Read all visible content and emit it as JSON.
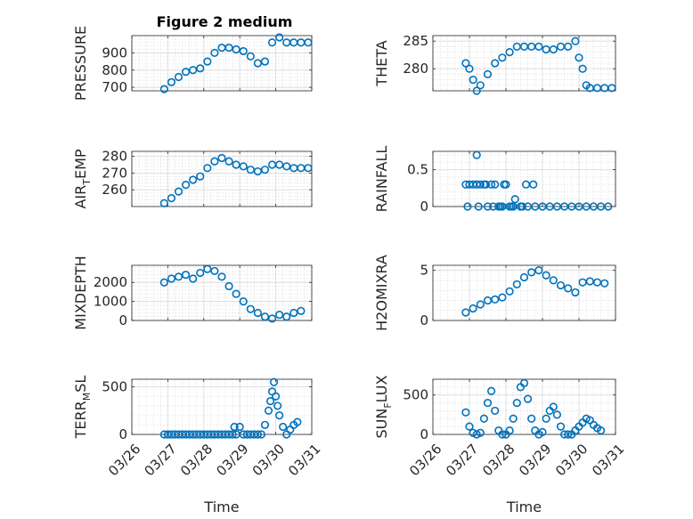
{
  "figure": {
    "title": "Figure 2 medium"
  },
  "chart_data": [
    {
      "type": "scatter",
      "title": "Figure 2 medium",
      "ylabel": "PRESSURE",
      "ylabel_sub": "",
      "xlabel": "",
      "xlim": [
        0,
        5
      ],
      "ylim": [
        680,
        1000
      ],
      "yticks": [
        700,
        800,
        900
      ],
      "grid": true,
      "series": [
        {
          "marker": "circle",
          "x": [
            0.9,
            1.1,
            1.3,
            1.5,
            1.7,
            1.9,
            2.1,
            2.3,
            2.5,
            2.7,
            2.9,
            3.1,
            3.3,
            3.5,
            3.7,
            3.9,
            4.1,
            4.3,
            4.5,
            4.7,
            4.9
          ],
          "y": [
            690,
            730,
            760,
            790,
            800,
            810,
            850,
            900,
            930,
            930,
            920,
            910,
            880,
            840,
            850,
            960,
            990,
            960,
            960,
            960,
            960
          ]
        }
      ]
    },
    {
      "type": "scatter",
      "title": "",
      "ylabel": "THETA",
      "ylabel_sub": "",
      "xlabel": "",
      "xlim": [
        0,
        5
      ],
      "ylim": [
        276,
        286
      ],
      "yticks": [
        280,
        285
      ],
      "grid": true,
      "series": [
        {
          "marker": "circle",
          "x": [
            0.9,
            1.0,
            1.1,
            1.2,
            1.3,
            1.5,
            1.7,
            1.9,
            2.1,
            2.3,
            2.5,
            2.7,
            2.9,
            3.1,
            3.3,
            3.5,
            3.7,
            3.9,
            4.0,
            4.1,
            4.2,
            4.3,
            4.5,
            4.7,
            4.9
          ],
          "y": [
            281,
            280,
            278,
            276,
            277,
            279,
            281,
            282,
            283,
            284,
            284,
            284,
            284,
            283.5,
            283.5,
            284,
            284,
            285,
            282,
            280,
            277,
            276.5,
            276.5,
            276.5,
            276.5
          ]
        }
      ]
    },
    {
      "type": "scatter",
      "title": "",
      "ylabel": "AIR",
      "ylabel_sub": "T",
      "ylabel_tail": "EMP",
      "xlabel": "",
      "xlim": [
        0,
        5
      ],
      "ylim": [
        250,
        283
      ],
      "yticks": [
        260,
        270,
        280
      ],
      "grid": true,
      "series": [
        {
          "marker": "circle",
          "x": [
            0.9,
            1.1,
            1.3,
            1.5,
            1.7,
            1.9,
            2.1,
            2.3,
            2.5,
            2.7,
            2.9,
            3.1,
            3.3,
            3.5,
            3.7,
            3.9,
            4.1,
            4.3,
            4.5,
            4.7,
            4.9
          ],
          "y": [
            252,
            255,
            259,
            263,
            266,
            268,
            273,
            277,
            279,
            277,
            275,
            274,
            272,
            271,
            272,
            275,
            275,
            274,
            273,
            273,
            273
          ]
        }
      ]
    },
    {
      "type": "scatter",
      "title": "",
      "ylabel": "RAINFALL",
      "ylabel_sub": "",
      "xlabel": "",
      "xlim": [
        0,
        5
      ],
      "ylim": [
        0,
        0.75
      ],
      "yticks": [
        0,
        0.5
      ],
      "grid": true,
      "series": [
        {
          "marker": "circle",
          "x": [
            0.9,
            1.0,
            1.1,
            1.2,
            1.3,
            1.4,
            1.5,
            1.6,
            1.7,
            1.8,
            1.9,
            2.0,
            2.1,
            2.2,
            2.4,
            2.6,
            2.8,
            3.0,
            3.2,
            3.4,
            3.6,
            3.8,
            4.0,
            4.2,
            4.4,
            4.6,
            4.8,
            0.95,
            1.25,
            1.45,
            1.65,
            1.85,
            1.95,
            2.15,
            2.25,
            2.45,
            2.55,
            2.75,
            1.2
          ],
          "y": [
            0.3,
            0.3,
            0.3,
            0.3,
            0.3,
            0.3,
            0,
            0.3,
            0.3,
            0,
            0,
            0.3,
            0,
            0,
            0,
            0,
            0,
            0,
            0,
            0,
            0,
            0,
            0,
            0,
            0,
            0,
            0,
            0,
            0,
            0.3,
            0,
            0,
            0.3,
            0,
            0.1,
            0,
            0.3,
            0.3,
            0.7
          ]
        }
      ]
    },
    {
      "type": "scatter",
      "title": "",
      "ylabel": "MIXDEPTH",
      "ylabel_sub": "",
      "xlabel": "",
      "xlim": [
        0,
        5
      ],
      "ylim": [
        0,
        2900
      ],
      "yticks": [
        0,
        1000,
        2000
      ],
      "grid": true,
      "series": [
        {
          "marker": "circle",
          "x": [
            0.9,
            1.1,
            1.3,
            1.5,
            1.7,
            1.9,
            2.1,
            2.3,
            2.5,
            2.7,
            2.9,
            3.1,
            3.3,
            3.5,
            3.7,
            3.9,
            4.1,
            4.3,
            4.5,
            4.7
          ],
          "y": [
            2000,
            2200,
            2300,
            2400,
            2200,
            2500,
            2700,
            2600,
            2300,
            1800,
            1400,
            1000,
            600,
            400,
            200,
            100,
            300,
            200,
            400,
            500
          ]
        }
      ]
    },
    {
      "type": "scatter",
      "title": "",
      "ylabel": "H2OMIXRA",
      "ylabel_sub": "",
      "xlabel": "",
      "xlim": [
        0,
        5
      ],
      "ylim": [
        0,
        5.5
      ],
      "yticks": [
        0,
        5
      ],
      "grid": true,
      "series": [
        {
          "marker": "circle",
          "x": [
            0.9,
            1.1,
            1.3,
            1.5,
            1.7,
            1.9,
            2.1,
            2.3,
            2.5,
            2.7,
            2.9,
            3.1,
            3.3,
            3.5,
            3.7,
            3.9,
            4.1,
            4.3,
            4.5,
            4.7
          ],
          "y": [
            0.8,
            1.2,
            1.6,
            2.0,
            2.1,
            2.3,
            2.9,
            3.6,
            4.3,
            4.8,
            5.0,
            4.5,
            4.0,
            3.5,
            3.2,
            2.8,
            3.8,
            3.9,
            3.8,
            3.7
          ]
        }
      ]
    },
    {
      "type": "scatter",
      "title": "",
      "ylabel": "TERR",
      "ylabel_sub": "M",
      "ylabel_tail": "SL",
      "xlabel": "Time",
      "xlim": [
        0,
        5
      ],
      "ylim": [
        0,
        580
      ],
      "yticks": [
        0,
        500
      ],
      "grid": true,
      "xticks": [
        "03/26",
        "03/27",
        "03/28",
        "03/29",
        "03/30",
        "03/31"
      ],
      "series": [
        {
          "marker": "circle",
          "x": [
            0.9,
            1.0,
            1.1,
            1.2,
            1.3,
            1.4,
            1.5,
            1.6,
            1.7,
            1.8,
            1.9,
            2.0,
            2.1,
            2.2,
            2.3,
            2.4,
            2.5,
            2.6,
            2.7,
            2.8,
            2.85,
            2.9,
            3.0,
            3.1,
            3.2,
            3.3,
            3.4,
            3.5,
            3.6,
            3.7,
            3.8,
            3.85,
            3.9,
            3.95,
            4.0,
            4.05,
            4.1,
            4.2,
            4.3,
            4.4,
            4.5,
            4.6
          ],
          "y": [
            0,
            0,
            0,
            0,
            0,
            0,
            0,
            0,
            0,
            0,
            0,
            0,
            0,
            0,
            0,
            0,
            0,
            0,
            0,
            0,
            80,
            0,
            80,
            0,
            0,
            0,
            0,
            0,
            0,
            100,
            250,
            350,
            450,
            550,
            400,
            300,
            200,
            80,
            0,
            50,
            100,
            130
          ]
        }
      ]
    },
    {
      "type": "scatter",
      "title": "",
      "ylabel": "SUN",
      "ylabel_sub": "F",
      "ylabel_tail": "LUX",
      "xlabel": "Time",
      "xlim": [
        0,
        5
      ],
      "ylim": [
        0,
        700
      ],
      "yticks": [
        0,
        500
      ],
      "grid": true,
      "xticks": [
        "03/26",
        "03/27",
        "03/28",
        "03/29",
        "03/30",
        "03/31"
      ],
      "series": [
        {
          "marker": "circle",
          "x": [
            0.9,
            1.0,
            1.1,
            1.2,
            1.3,
            1.4,
            1.5,
            1.6,
            1.7,
            1.8,
            1.9,
            2.0,
            2.1,
            2.2,
            2.3,
            2.4,
            2.5,
            2.6,
            2.7,
            2.8,
            2.9,
            3.0,
            3.1,
            3.2,
            3.3,
            3.4,
            3.5,
            3.6,
            3.7,
            3.8,
            3.9,
            4.0,
            4.1,
            4.2,
            4.3,
            4.4,
            4.5,
            4.6
          ],
          "y": [
            280,
            100,
            20,
            0,
            20,
            200,
            400,
            550,
            300,
            50,
            0,
            0,
            50,
            200,
            400,
            600,
            650,
            450,
            200,
            50,
            0,
            30,
            200,
            300,
            350,
            250,
            100,
            0,
            0,
            0,
            50,
            100,
            150,
            200,
            180,
            120,
            80,
            50
          ]
        }
      ]
    }
  ]
}
